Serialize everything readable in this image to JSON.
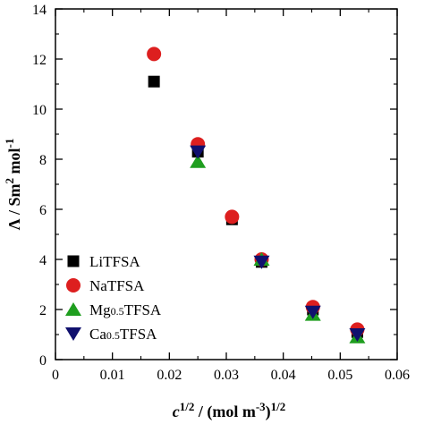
{
  "chart_data": {
    "type": "scatter",
    "xlim": [
      0,
      0.06
    ],
    "ylim": [
      0,
      14
    ],
    "xticks": [
      "0",
      "0.01",
      "0.02",
      "0.03",
      "0.04",
      "0.05",
      "0.06"
    ],
    "yticks": [
      "0",
      "2",
      "4",
      "6",
      "8",
      "10",
      "12",
      "14"
    ],
    "xlabel": {
      "var": "c",
      "exp": "1/2",
      "mid": " / (mol m",
      "exp2": "-3",
      "end": ")",
      "exp3": "1/2"
    },
    "ylabel": {
      "sym": "Λ / Sm",
      "exp": "2",
      "mid": " mol",
      "exp2": "-1"
    },
    "legend_position": "bottom-left",
    "grid": false,
    "series": [
      {
        "name": "LiTFSA",
        "name_main": "LiTFSA",
        "name_sub": "",
        "name_tail": "",
        "marker": "square",
        "color": "#000000",
        "x": [
          0.0173,
          0.025,
          0.031,
          0.0362,
          0.0452,
          0.053
        ],
        "y": [
          11.1,
          8.3,
          5.6,
          3.9,
          2.0,
          1.1
        ]
      },
      {
        "name": "NaTFSA",
        "name_main": "NaTFSA",
        "name_sub": "",
        "name_tail": "",
        "marker": "circle",
        "color": "#dd1f1f",
        "x": [
          0.0173,
          0.025,
          0.031,
          0.0362,
          0.0452,
          0.053
        ],
        "y": [
          12.2,
          8.6,
          5.7,
          4.0,
          2.1,
          1.2
        ]
      },
      {
        "name": "Mg0.5TFSA",
        "name_main": "Mg",
        "name_sub": "0.5",
        "name_tail": "TFSA",
        "marker": "triangle-up",
        "color": "#1f9e1f",
        "x": [
          0.025,
          0.0362,
          0.0452,
          0.053
        ],
        "y": [
          7.9,
          4.0,
          1.8,
          0.9
        ]
      },
      {
        "name": "Ca0.5TFSA",
        "name_main": "Ca",
        "name_sub": "0.5",
        "name_tail": "TFSA",
        "marker": "triangle-down",
        "color": "#10106e",
        "x": [
          0.025,
          0.0362,
          0.0452,
          0.053
        ],
        "y": [
          8.3,
          3.9,
          1.9,
          1.0
        ]
      }
    ]
  }
}
